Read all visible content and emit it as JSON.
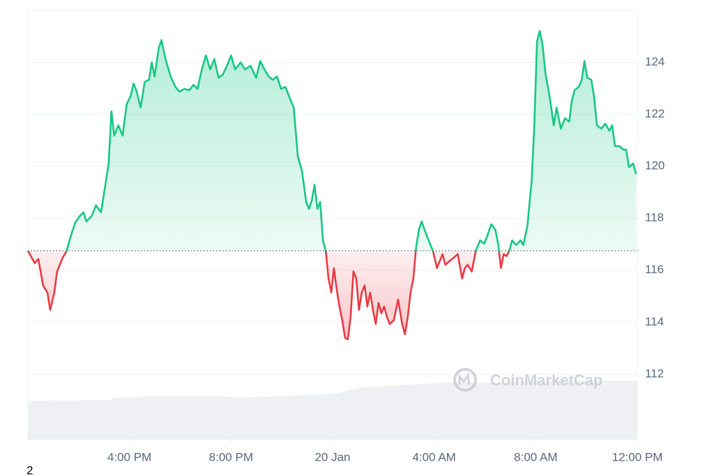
{
  "chart_data": {
    "type": "line",
    "x": [
      0,
      0.27,
      0.41,
      0.6,
      0.77,
      0.88,
      1.04,
      1.15,
      1.37,
      1.53,
      1.64,
      1.86,
      2.05,
      2.19,
      2.3,
      2.52,
      2.68,
      2.88,
      3.01,
      3.18,
      3.29,
      3.4,
      3.56,
      3.73,
      3.89,
      4.05,
      4.16,
      4.27,
      4.44,
      4.6,
      4.77,
      4.88,
      4.99,
      5.15,
      5.26,
      5.42,
      5.62,
      5.81,
      5.97,
      6.16,
      6.36,
      6.52,
      6.68,
      6.85,
      7.01,
      7.18,
      7.34,
      7.51,
      7.67,
      7.84,
      8,
      8.16,
      8.38,
      8.55,
      8.77,
      8.99,
      9.15,
      9.32,
      9.48,
      9.64,
      9.81,
      9.97,
      10.14,
      10.3,
      10.47,
      10.63,
      10.79,
      10.96,
      11.07,
      11.18,
      11.29,
      11.4,
      11.51,
      11.62,
      11.73,
      11.84,
      11.95,
      12.05,
      12.16,
      12.27,
      12.38,
      12.49,
      12.6,
      12.71,
      12.82,
      12.93,
      13.04,
      13.15,
      13.26,
      13.37,
      13.48,
      13.59,
      13.7,
      13.81,
      13.92,
      14.03,
      14.14,
      14.25,
      14.41,
      14.58,
      14.74,
      14.85,
      14.96,
      15.07,
      15.18,
      15.29,
      15.4,
      15.51,
      15.62,
      15.78,
      15.95,
      16.11,
      16.22,
      16.33,
      16.44,
      16.6,
      16.77,
      16.93,
      17.1,
      17.21,
      17.32,
      17.48,
      17.64,
      17.81,
      17.97,
      18.08,
      18.25,
      18.41,
      18.52,
      18.63,
      18.74,
      18.85,
      18.96,
      19.07,
      19.23,
      19.4,
      19.51,
      19.67,
      19.84,
      19.95,
      20.05,
      20.16,
      20.27,
      20.38,
      20.55,
      20.71,
      20.82,
      20.99,
      21.15,
      21.32,
      21.42,
      21.53,
      21.7,
      21.81,
      21.92,
      22.03,
      22.19,
      22.3,
      22.41,
      22.58,
      22.74,
      22.9,
      23.01,
      23.12,
      23.29,
      23.45,
      23.56,
      23.67,
      23.84,
      23.95
    ],
    "values": [
      116.75,
      116.27,
      116.43,
      115.41,
      115.14,
      114.47,
      115.14,
      115.95,
      116.48,
      116.75,
      117.15,
      117.83,
      118.09,
      118.23,
      117.88,
      118.09,
      118.5,
      118.23,
      119.03,
      120.11,
      122.12,
      121.18,
      121.58,
      121.18,
      122.39,
      122.71,
      123.19,
      122.93,
      122.26,
      123.25,
      123.33,
      124,
      123.46,
      124.54,
      124.86,
      124.13,
      123.46,
      123.06,
      122.87,
      122.98,
      122.93,
      123.14,
      122.98,
      123.73,
      124.27,
      123.73,
      124.13,
      123.41,
      123.52,
      123.87,
      124.27,
      123.73,
      124,
      123.73,
      123.87,
      123.41,
      124.05,
      123.73,
      123.46,
      123.33,
      123.46,
      122.98,
      123.06,
      122.66,
      122.26,
      120.38,
      119.84,
      118.63,
      118.36,
      118.68,
      119.3,
      118.36,
      118.63,
      117.15,
      116.75,
      115.68,
      115.14,
      116.08,
      115.28,
      114.6,
      114.07,
      113.4,
      113.34,
      114.2,
      115.95,
      115.68,
      114.47,
      115.14,
      115.41,
      114.6,
      115.14,
      114.47,
      113.93,
      114.74,
      114.34,
      114.6,
      114.2,
      113.93,
      114.07,
      114.87,
      113.93,
      113.53,
      114.2,
      115.14,
      115.68,
      116.89,
      117.56,
      117.88,
      117.56,
      117.15,
      116.75,
      116.08,
      116.35,
      116.62,
      116.21,
      116.35,
      116.48,
      116.62,
      115.68,
      116.08,
      116.21,
      115.95,
      116.75,
      117.15,
      117.02,
      117.29,
      117.77,
      117.56,
      117.02,
      116.08,
      116.62,
      116.54,
      116.75,
      117.15,
      116.97,
      117.15,
      116.97,
      117.69,
      119.44,
      121.72,
      124.81,
      125.21,
      124.67,
      123.6,
      122.66,
      121.58,
      122.26,
      121.45,
      121.85,
      121.72,
      122.52,
      122.93,
      123.06,
      123.33,
      124.05,
      123.41,
      123.33,
      122.66,
      121.58,
      121.45,
      121.64,
      121.37,
      121.58,
      120.78,
      120.78,
      120.64,
      120.64,
      119.97,
      120.11,
      119.7
    ],
    "baseline": 116.75,
    "color_up": "#16c784",
    "color_down": "#ea3943",
    "xlim": [
      0,
      24
    ],
    "xticks": [
      {
        "value": 4,
        "label": "4:00 PM"
      },
      {
        "value": 8,
        "label": "8:00 PM"
      },
      {
        "value": 12,
        "label": "20 Jan"
      },
      {
        "value": 16,
        "label": "4:00 AM"
      },
      {
        "value": 20,
        "label": "8:00 AM"
      },
      {
        "value": 24,
        "label": "12:00 PM"
      }
    ],
    "ylim": [
      109.5,
      126
    ],
    "yticks": [
      112,
      114,
      116,
      118,
      120,
      122,
      124
    ],
    "grid": true,
    "watermark": "CoinMarketCap",
    "footnote": "2"
  }
}
